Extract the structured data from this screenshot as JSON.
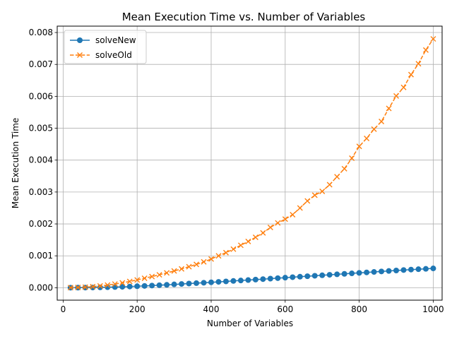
{
  "chart_data": {
    "type": "line",
    "title": "Mean Execution Time vs. Number of Variables",
    "xlabel": "Number of Variables",
    "ylabel": "Mean Execution Time",
    "xlim": [
      -16,
      1024
    ],
    "ylim": [
      -0.00039,
      0.0082
    ],
    "x_ticks": [
      0,
      200,
      400,
      600,
      800,
      1000
    ],
    "y_ticks": [
      0.0,
      0.001,
      0.002,
      0.003,
      0.004,
      0.005,
      0.006,
      0.007,
      0.008
    ],
    "x_tick_labels": [
      "0",
      "200",
      "400",
      "600",
      "800",
      "1000"
    ],
    "y_tick_labels": [
      "0.000",
      "0.001",
      "0.002",
      "0.003",
      "0.004",
      "0.005",
      "0.006",
      "0.007",
      "0.008"
    ],
    "grid": true,
    "legend_position": "top-left",
    "x": [
      20,
      40,
      60,
      80,
      100,
      120,
      140,
      160,
      180,
      200,
      220,
      240,
      260,
      280,
      300,
      320,
      340,
      360,
      380,
      400,
      420,
      440,
      460,
      480,
      500,
      520,
      540,
      560,
      580,
      600,
      620,
      640,
      660,
      680,
      700,
      720,
      740,
      760,
      780,
      800,
      820,
      840,
      860,
      880,
      900,
      920,
      940,
      960,
      980,
      1000
    ],
    "series": [
      {
        "name": "solveNew",
        "color": "#1f77b4",
        "marker": "circle",
        "line_style": "solid",
        "values": [
          1e-06,
          2e-06,
          4e-06,
          7e-06,
          1.1e-05,
          1.6e-05,
          2.2e-05,
          2.9e-05,
          3.7e-05,
          4.6e-05,
          5.6e-05,
          6.7e-05,
          7.9e-05,
          9.1e-05,
          0.000104,
          0.000117,
          0.00013,
          0.000143,
          0.000156,
          0.00017,
          0.000184,
          0.000198,
          0.000212,
          0.000226,
          0.00024,
          0.000255,
          0.00027,
          0.000285,
          0.0003,
          0.000315,
          0.00033,
          0.000345,
          0.00036,
          0.000375,
          0.00039,
          0.000405,
          0.00042,
          0.000435,
          0.00045,
          0.000465,
          0.00048,
          0.000495,
          0.00051,
          0.000525,
          0.00054,
          0.000555,
          0.000568,
          0.00058,
          0.000592,
          0.000605
        ]
      },
      {
        "name": "solveOld",
        "color": "#ff7f0e",
        "marker": "x",
        "line_style": "dashed",
        "values": [
          2e-06,
          8e-06,
          1.8e-05,
          3.4e-05,
          5.5e-05,
          8.2e-05,
          0.000115,
          0.000153,
          0.000196,
          0.000245,
          0.000297,
          0.00035,
          0.000405,
          0.000465,
          0.000525,
          0.00059,
          0.00066,
          0.00073,
          0.00081,
          0.0009,
          0.001,
          0.0011,
          0.00121,
          0.00133,
          0.00145,
          0.00158,
          0.00172,
          0.00189,
          0.00203,
          0.00215,
          0.00229,
          0.0025,
          0.00272,
          0.0029,
          0.00302,
          0.00323,
          0.00348,
          0.00373,
          0.00406,
          0.00443,
          0.00468,
          0.00497,
          0.00521,
          0.00562,
          0.00601,
          0.00628,
          0.00668,
          0.00702,
          0.00745,
          0.0078
        ]
      }
    ]
  }
}
